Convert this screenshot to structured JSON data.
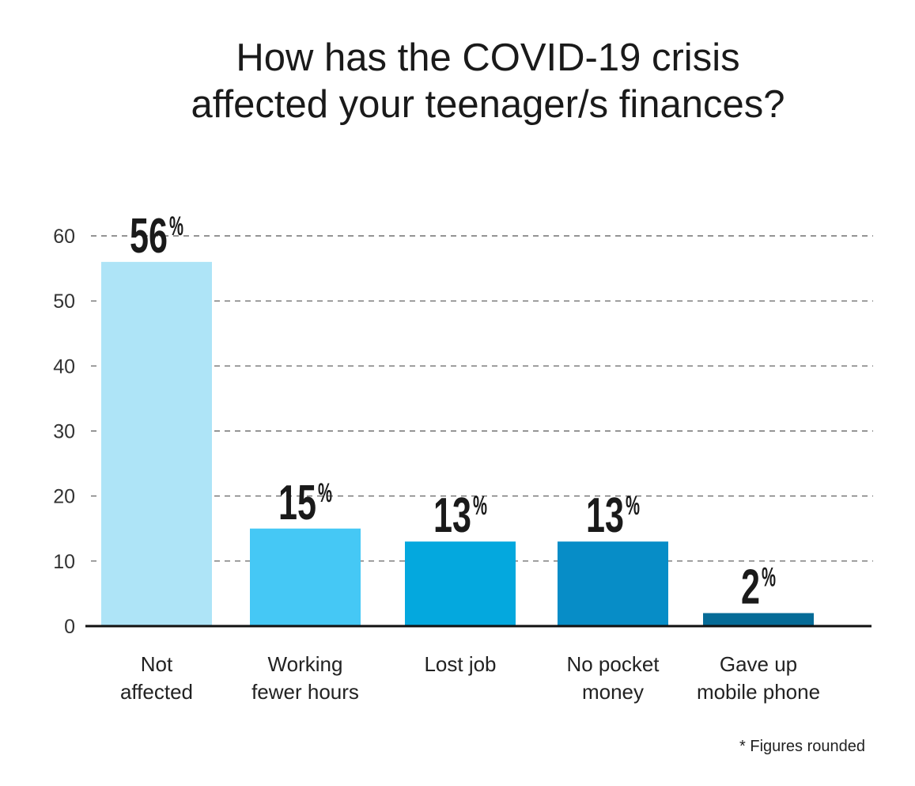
{
  "chart_data": {
    "type": "bar",
    "title_lines": [
      "How has the COVID-19 crisis",
      "affected your teenager/s finances?"
    ],
    "categories": [
      [
        "Not",
        "affected"
      ],
      [
        "Working",
        "fewer hours"
      ],
      [
        "Lost job"
      ],
      [
        "No pocket",
        "money"
      ],
      [
        "Gave up",
        "mobile phone"
      ]
    ],
    "values": [
      56,
      15,
      13,
      13,
      2
    ],
    "value_labels": [
      "56",
      "15",
      "13",
      "13",
      "2"
    ],
    "value_suffix": "%",
    "bar_colors": [
      "#aee4f7",
      "#45c8f5",
      "#04a8de",
      "#078dc7",
      "#066b97"
    ],
    "ylim": [
      0,
      60
    ],
    "yticks": [
      "0",
      "10",
      "20",
      "30",
      "40",
      "50",
      "60"
    ],
    "grid": true,
    "footnote": "* Figures rounded"
  }
}
